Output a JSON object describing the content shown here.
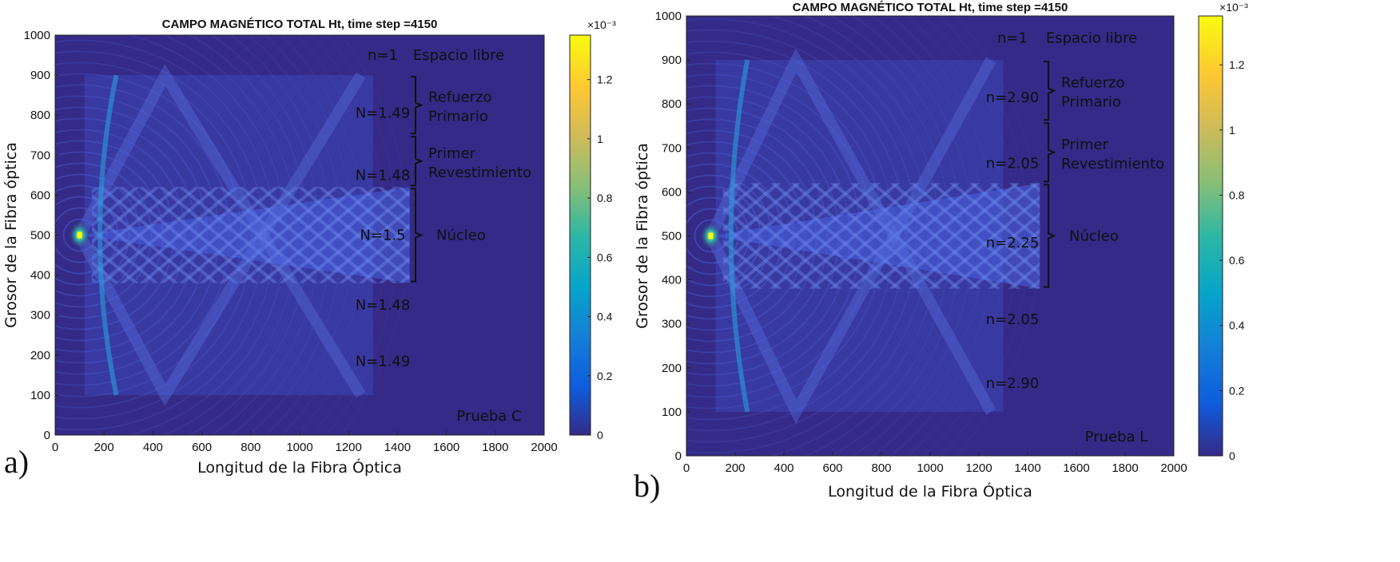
{
  "chart_data": [
    {
      "type": "heatmap",
      "panel_label": "a)",
      "title": "CAMPO MAGNÉTICO TOTAL Ht, time step =4150",
      "xlabel": "Longitud de la Fibra Óptica",
      "ylabel": "Grosor de la Fibra óptica",
      "xlim": [
        0,
        2000
      ],
      "ylim": [
        0,
        1000
      ],
      "xticks": [
        "0",
        "200",
        "400",
        "600",
        "800",
        "1000",
        "1200",
        "1400",
        "1600",
        "1800",
        "2000"
      ],
      "yticks": [
        "0",
        "100",
        "200",
        "300",
        "400",
        "500",
        "600",
        "700",
        "800",
        "900",
        "1000"
      ],
      "colorbar": {
        "exponent": "×10⁻³",
        "range": [
          0,
          1.35
        ],
        "ticks": [
          "0",
          "0.2",
          "0.4",
          "0.6",
          "0.8",
          "1",
          "1.2"
        ]
      },
      "source": {
        "x": 100,
        "y": 500
      },
      "bands": [
        {
          "label": "n=1",
          "y": 950,
          "region": "Espacio libre",
          "range": [
            900,
            1000
          ]
        },
        {
          "label": "N=1.49",
          "y": 805,
          "region": "Refuerzo Primario",
          "range": [
            750,
            900
          ]
        },
        {
          "label": "N=1.48",
          "y": 650,
          "region": "Primer Revestimiento",
          "range": [
            620,
            750
          ]
        },
        {
          "label": "N=1.5",
          "y": 500,
          "region": "Núcleo",
          "range": [
            380,
            620
          ]
        },
        {
          "label": "N=1.48",
          "y": 325,
          "region": "",
          "range": [
            250,
            380
          ]
        },
        {
          "label": "N=1.49",
          "y": 185,
          "region": "",
          "range": [
            100,
            250
          ]
        }
      ],
      "annotation": "Prueba C"
    },
    {
      "type": "heatmap",
      "panel_label": "b)",
      "title": "CAMPO MAGNÉTICO TOTAL Ht, time step =4150",
      "xlabel": "Longitud de la Fibra Óptica",
      "ylabel": "Grosor de la Fibra óptica",
      "xlim": [
        0,
        2000
      ],
      "ylim": [
        0,
        1000
      ],
      "xticks": [
        "0",
        "200",
        "400",
        "600",
        "800",
        "1000",
        "1200",
        "1400",
        "1600",
        "1800",
        "2000"
      ],
      "yticks": [
        "0",
        "100",
        "200",
        "300",
        "400",
        "500",
        "600",
        "700",
        "800",
        "900",
        "1000"
      ],
      "colorbar": {
        "exponent": "×10⁻³",
        "range": [
          0,
          1.35
        ],
        "ticks": [
          "0",
          "0.2",
          "0.4",
          "0.6",
          "0.8",
          "1",
          "1.2"
        ]
      },
      "source": {
        "x": 100,
        "y": 500
      },
      "bands": [
        {
          "label": "n=1",
          "y": 950,
          "region": "Espacio libre",
          "range": [
            900,
            1000
          ]
        },
        {
          "label": "n=2.90",
          "y": 815,
          "region": "Refuerzo Primario",
          "range": [
            760,
            900
          ]
        },
        {
          "label": "n=2.05",
          "y": 665,
          "region": "Primer Revestimiento",
          "range": [
            620,
            760
          ]
        },
        {
          "label": "n=2.25",
          "y": 485,
          "region": "Núcleo",
          "range": [
            380,
            620
          ]
        },
        {
          "label": "n=2.05",
          "y": 310,
          "region": "",
          "range": [
            250,
            380
          ]
        },
        {
          "label": "n=2.90",
          "y": 165,
          "region": "",
          "range": [
            100,
            250
          ]
        }
      ],
      "annotation": "Prueba L"
    }
  ]
}
